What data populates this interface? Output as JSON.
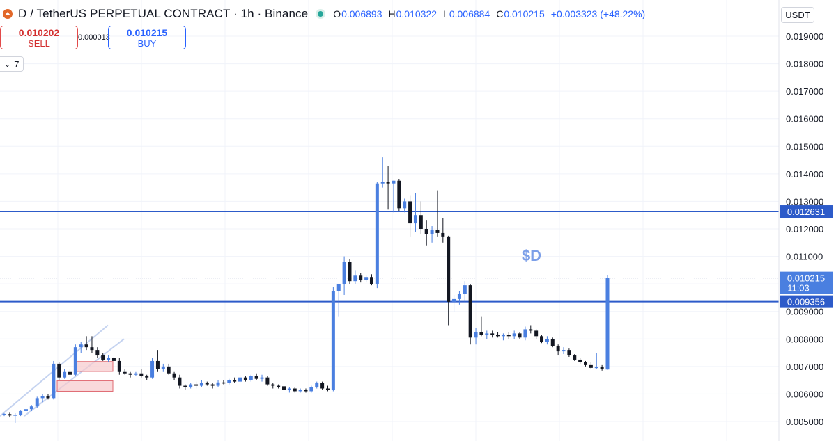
{
  "header": {
    "title": "D / TetherUS PERPETUAL CONTRACT · 1h · Binance",
    "ohlc": [
      {
        "key": "O",
        "value": "0.006893"
      },
      {
        "key": "H",
        "value": "0.010322"
      },
      {
        "key": "L",
        "value": "0.006884"
      },
      {
        "key": "C",
        "value": "0.010215"
      }
    ],
    "change": "+0.003323 (+48.22%)"
  },
  "trade": {
    "sell_price": "0.010202",
    "sell_label": "SELL",
    "spread": "0.000013",
    "buy_price": "0.010215",
    "buy_label": "BUY"
  },
  "indicators_toggle": "7",
  "currency": "USDT",
  "colors": {
    "accent": "#2962ff",
    "up": "#4a7fe0",
    "down": "#131722",
    "line": "#2d5bc9",
    "zone": "#f7c9cc"
  },
  "chart_data": {
    "type": "candlestick",
    "timeframe": "1h",
    "ylim": [
      0.0046,
      0.0196
    ],
    "yticks": [
      "0.005000",
      "0.006000",
      "0.007000",
      "0.008000",
      "0.009000",
      "0.010000",
      "0.011000",
      "0.012000",
      "0.013000",
      "0.014000",
      "0.015000",
      "0.016000",
      "0.017000",
      "0.018000",
      "0.019000"
    ],
    "annotation": "$D",
    "horizontal_lines": [
      {
        "price": 0.012631,
        "label": "0.012631"
      },
      {
        "price": 0.009356,
        "label": "0.009356"
      }
    ],
    "current_price": {
      "price": 0.010215,
      "label": "0.010215",
      "countdown": "11:03"
    },
    "candles": [
      [
        0.00525,
        0.0053,
        0.0052,
        0.00528
      ],
      [
        0.00527,
        0.00532,
        0.00515,
        0.00522
      ],
      [
        0.00522,
        0.0053,
        0.00495,
        0.00525
      ],
      [
        0.00525,
        0.0054,
        0.0052,
        0.00538
      ],
      [
        0.00538,
        0.0055,
        0.0053,
        0.00545
      ],
      [
        0.00545,
        0.0056,
        0.00538,
        0.00555
      ],
      [
        0.00555,
        0.0059,
        0.0055,
        0.00585
      ],
      [
        0.00585,
        0.006,
        0.0057,
        0.00592
      ],
      [
        0.00592,
        0.006,
        0.0058,
        0.00585
      ],
      [
        0.00585,
        0.0072,
        0.0058,
        0.0071
      ],
      [
        0.0071,
        0.00715,
        0.0065,
        0.0066
      ],
      [
        0.0066,
        0.0069,
        0.00655,
        0.0068
      ],
      [
        0.0068,
        0.0069,
        0.0066,
        0.0067
      ],
      [
        0.0067,
        0.0078,
        0.00665,
        0.0077
      ],
      [
        0.0077,
        0.0079,
        0.0075,
        0.0078
      ],
      [
        0.0078,
        0.0081,
        0.0076,
        0.0077
      ],
      [
        0.0077,
        0.0081,
        0.0075,
        0.0076
      ],
      [
        0.0076,
        0.0077,
        0.0073,
        0.0074
      ],
      [
        0.0074,
        0.0075,
        0.0072,
        0.00725
      ],
      [
        0.00725,
        0.0074,
        0.00715,
        0.0073
      ],
      [
        0.0073,
        0.00735,
        0.00715,
        0.0072
      ],
      [
        0.0072,
        0.0073,
        0.0067,
        0.0068
      ],
      [
        0.0068,
        0.0069,
        0.0067,
        0.00675
      ],
      [
        0.00675,
        0.0068,
        0.0066,
        0.0067
      ],
      [
        0.0067,
        0.0068,
        0.00665,
        0.00675
      ],
      [
        0.00675,
        0.0069,
        0.0066,
        0.00665
      ],
      [
        0.00665,
        0.0067,
        0.0065,
        0.0066
      ],
      [
        0.0066,
        0.0073,
        0.00655,
        0.0072
      ],
      [
        0.0072,
        0.0076,
        0.0068,
        0.0069
      ],
      [
        0.0069,
        0.0071,
        0.0068,
        0.007
      ],
      [
        0.007,
        0.0071,
        0.0067,
        0.00675
      ],
      [
        0.00675,
        0.0068,
        0.0065,
        0.0066
      ],
      [
        0.0066,
        0.0067,
        0.0062,
        0.0063
      ],
      [
        0.0063,
        0.00635,
        0.00615,
        0.00625
      ],
      [
        0.00625,
        0.0064,
        0.0062,
        0.00635
      ],
      [
        0.00635,
        0.00645,
        0.0062,
        0.0063
      ],
      [
        0.0063,
        0.0065,
        0.00625,
        0.0064
      ],
      [
        0.0064,
        0.00645,
        0.0063,
        0.00635
      ],
      [
        0.00635,
        0.0064,
        0.0062,
        0.0063
      ],
      [
        0.0063,
        0.0065,
        0.00625,
        0.00642
      ],
      [
        0.00642,
        0.0065,
        0.00635,
        0.0064
      ],
      [
        0.0064,
        0.00655,
        0.00635,
        0.0065
      ],
      [
        0.0065,
        0.0066,
        0.0064,
        0.00645
      ],
      [
        0.00645,
        0.0067,
        0.0064,
        0.0066
      ],
      [
        0.0066,
        0.00665,
        0.00645,
        0.0065
      ],
      [
        0.0065,
        0.0067,
        0.00645,
        0.00665
      ],
      [
        0.00665,
        0.00675,
        0.0065,
        0.00655
      ],
      [
        0.00655,
        0.0067,
        0.00645,
        0.0066
      ],
      [
        0.0066,
        0.00665,
        0.0063,
        0.00635
      ],
      [
        0.00635,
        0.0064,
        0.0062,
        0.0063
      ],
      [
        0.0063,
        0.00635,
        0.0062,
        0.00628
      ],
      [
        0.00628,
        0.00632,
        0.0061,
        0.00615
      ],
      [
        0.00615,
        0.00625,
        0.00605,
        0.0062
      ],
      [
        0.0062,
        0.00625,
        0.00605,
        0.0061
      ],
      [
        0.0061,
        0.0062,
        0.00605,
        0.00615
      ],
      [
        0.00615,
        0.0062,
        0.00605,
        0.0061
      ],
      [
        0.0061,
        0.0063,
        0.00605,
        0.00625
      ],
      [
        0.00625,
        0.00645,
        0.0062,
        0.0064
      ],
      [
        0.0064,
        0.00645,
        0.00615,
        0.0062
      ],
      [
        0.0062,
        0.0063,
        0.0061,
        0.00615
      ],
      [
        0.00615,
        0.0099,
        0.0061,
        0.00975
      ],
      [
        0.00975,
        0.01,
        0.0088,
        0.01
      ],
      [
        0.01,
        0.011,
        0.0096,
        0.0108
      ],
      [
        0.0108,
        0.0109,
        0.01,
        0.0101
      ],
      [
        0.0101,
        0.0105,
        0.01,
        0.0103
      ],
      [
        0.0103,
        0.0104,
        0.01005,
        0.01015
      ],
      [
        0.01015,
        0.0103,
        0.01005,
        0.01025
      ],
      [
        0.01025,
        0.01035,
        0.00995,
        0.01
      ],
      [
        0.01,
        0.0137,
        0.00985,
        0.01365
      ],
      [
        0.01365,
        0.0146,
        0.0135,
        0.0137
      ],
      [
        0.0137,
        0.0143,
        0.0127,
        0.01365
      ],
      [
        0.01365,
        0.01375,
        0.0126,
        0.01375
      ],
      [
        0.01375,
        0.0138,
        0.01265,
        0.01275
      ],
      [
        0.01275,
        0.0131,
        0.0126,
        0.013
      ],
      [
        0.013,
        0.0132,
        0.0117,
        0.0122
      ],
      [
        0.0122,
        0.0133,
        0.0119,
        0.0125
      ],
      [
        0.0125,
        0.013,
        0.0118,
        0.012
      ],
      [
        0.012,
        0.0123,
        0.0114,
        0.0118
      ],
      [
        0.0118,
        0.0121,
        0.0115,
        0.01195
      ],
      [
        0.01195,
        0.0134,
        0.0117,
        0.01185
      ],
      [
        0.01185,
        0.0124,
        0.0115,
        0.0117
      ],
      [
        0.0117,
        0.01175,
        0.0085,
        0.00935
      ],
      [
        0.00935,
        0.0096,
        0.009,
        0.00945
      ],
      [
        0.00945,
        0.00975,
        0.00925,
        0.00965
      ],
      [
        0.00965,
        0.0101,
        0.00935,
        0.00995
      ],
      [
        0.00995,
        0.01,
        0.0078,
        0.00805
      ],
      [
        0.00805,
        0.0084,
        0.0078,
        0.00825
      ],
      [
        0.00825,
        0.0088,
        0.0081,
        0.00815
      ],
      [
        0.00815,
        0.0083,
        0.008,
        0.0082
      ],
      [
        0.0082,
        0.0083,
        0.00805,
        0.00815
      ],
      [
        0.00815,
        0.00825,
        0.00805,
        0.0081
      ],
      [
        0.0081,
        0.0082,
        0.00795,
        0.00815
      ],
      [
        0.00815,
        0.00825,
        0.008,
        0.0081
      ],
      [
        0.0081,
        0.0083,
        0.008,
        0.0082
      ],
      [
        0.0082,
        0.00825,
        0.008,
        0.00805
      ],
      [
        0.00805,
        0.00845,
        0.00795,
        0.00835
      ],
      [
        0.00835,
        0.0085,
        0.0082,
        0.0083
      ],
      [
        0.0083,
        0.00835,
        0.008,
        0.0081
      ],
      [
        0.0081,
        0.00815,
        0.00785,
        0.0079
      ],
      [
        0.0079,
        0.0081,
        0.0078,
        0.008
      ],
      [
        0.008,
        0.00805,
        0.0077,
        0.00775
      ],
      [
        0.00775,
        0.0078,
        0.0074,
        0.00755
      ],
      [
        0.00755,
        0.0077,
        0.00745,
        0.0076
      ],
      [
        0.0076,
        0.00765,
        0.00735,
        0.0074
      ],
      [
        0.0074,
        0.00745,
        0.0072,
        0.00725
      ],
      [
        0.00725,
        0.0073,
        0.0071,
        0.00715
      ],
      [
        0.00715,
        0.0072,
        0.007,
        0.00705
      ],
      [
        0.00705,
        0.00715,
        0.0069,
        0.00695
      ],
      [
        0.00695,
        0.0075,
        0.0069,
        0.00698
      ],
      [
        0.00698,
        0.00705,
        0.00685,
        0.0069
      ],
      [
        0.00689,
        0.01032,
        0.00688,
        0.01021
      ]
    ],
    "drawings": {
      "channel_lines": [
        [
          [
            0,
            0.0052
          ],
          [
            155,
            0.0085
          ]
        ],
        [
          [
            35,
            0.0052
          ],
          [
            178,
            0.008
          ]
        ]
      ],
      "boxes": [
        [
          110,
          0.00718,
          162,
          0.00682
        ],
        [
          82,
          0.00648,
          162,
          0.0061
        ]
      ]
    }
  }
}
